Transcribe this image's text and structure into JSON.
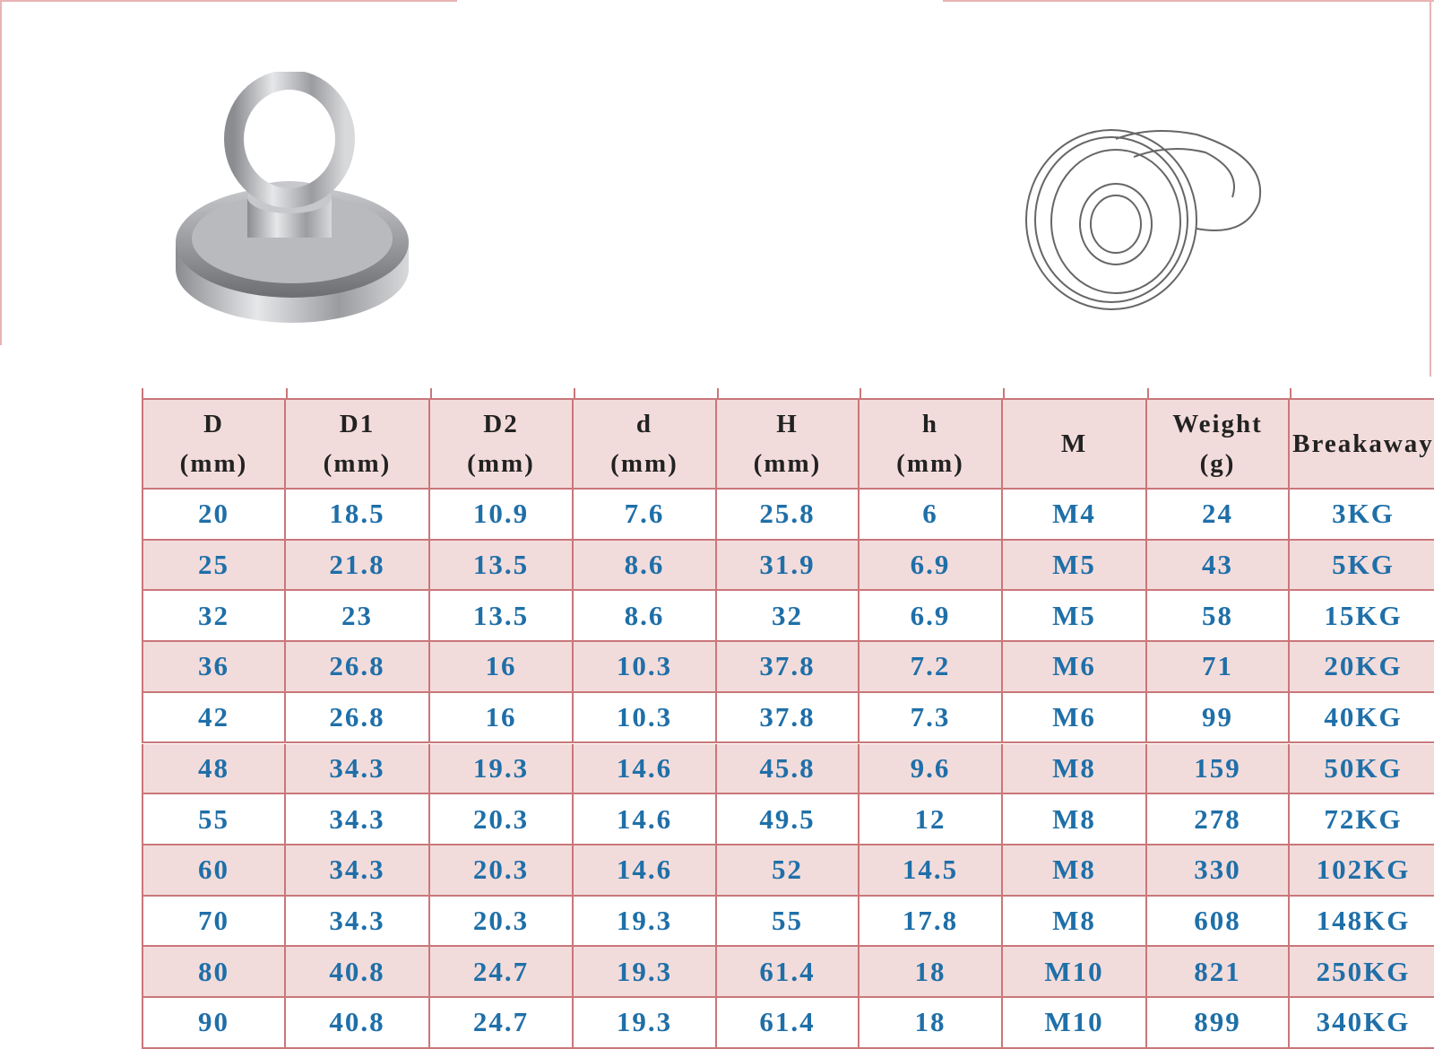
{
  "table": {
    "header": [
      [
        "D",
        "(mm)"
      ],
      [
        "D1",
        "(mm)"
      ],
      [
        "D2",
        "(mm)"
      ],
      [
        "d",
        "(mm)"
      ],
      [
        "H",
        "(mm)"
      ],
      [
        "h",
        "(mm)"
      ],
      [
        "M"
      ],
      [
        "Weight",
        "(g)"
      ],
      [
        "Breakaway"
      ]
    ],
    "rows": [
      [
        "20",
        "18.5",
        "10.9",
        "7.6",
        "25.8",
        "6",
        "M4",
        "24",
        "3KG"
      ],
      [
        "25",
        "21.8",
        "13.5",
        "8.6",
        "31.9",
        "6.9",
        "M5",
        "43",
        "5KG"
      ],
      [
        "32",
        "23",
        "13.5",
        "8.6",
        "32",
        "6.9",
        "M5",
        "58",
        "15KG"
      ],
      [
        "36",
        "26.8",
        "16",
        "10.3",
        "37.8",
        "7.2",
        "M6",
        "71",
        "20KG"
      ],
      [
        "42",
        "26.8",
        "16",
        "10.3",
        "37.8",
        "7.3",
        "M6",
        "99",
        "40KG"
      ],
      [
        "48",
        "34.3",
        "19.3",
        "14.6",
        "45.8",
        "9.6",
        "M8",
        "159",
        "50KG"
      ],
      [
        "55",
        "34.3",
        "20.3",
        "14.6",
        "49.5",
        "12",
        "M8",
        "278",
        "72KG"
      ],
      [
        "60",
        "34.3",
        "20.3",
        "14.6",
        "52",
        "14.5",
        "M8",
        "330",
        "102KG"
      ],
      [
        "70",
        "34.3",
        "20.3",
        "19.3",
        "55",
        "17.8",
        "M8",
        "608",
        "148KG"
      ],
      [
        "80",
        "40.8",
        "24.7",
        "19.3",
        "61.4",
        "18",
        "M10",
        "821",
        "250KG"
      ],
      [
        "90",
        "40.8",
        "24.7",
        "19.3",
        "61.4",
        "18",
        "M10",
        "899",
        "340KG"
      ]
    ]
  }
}
